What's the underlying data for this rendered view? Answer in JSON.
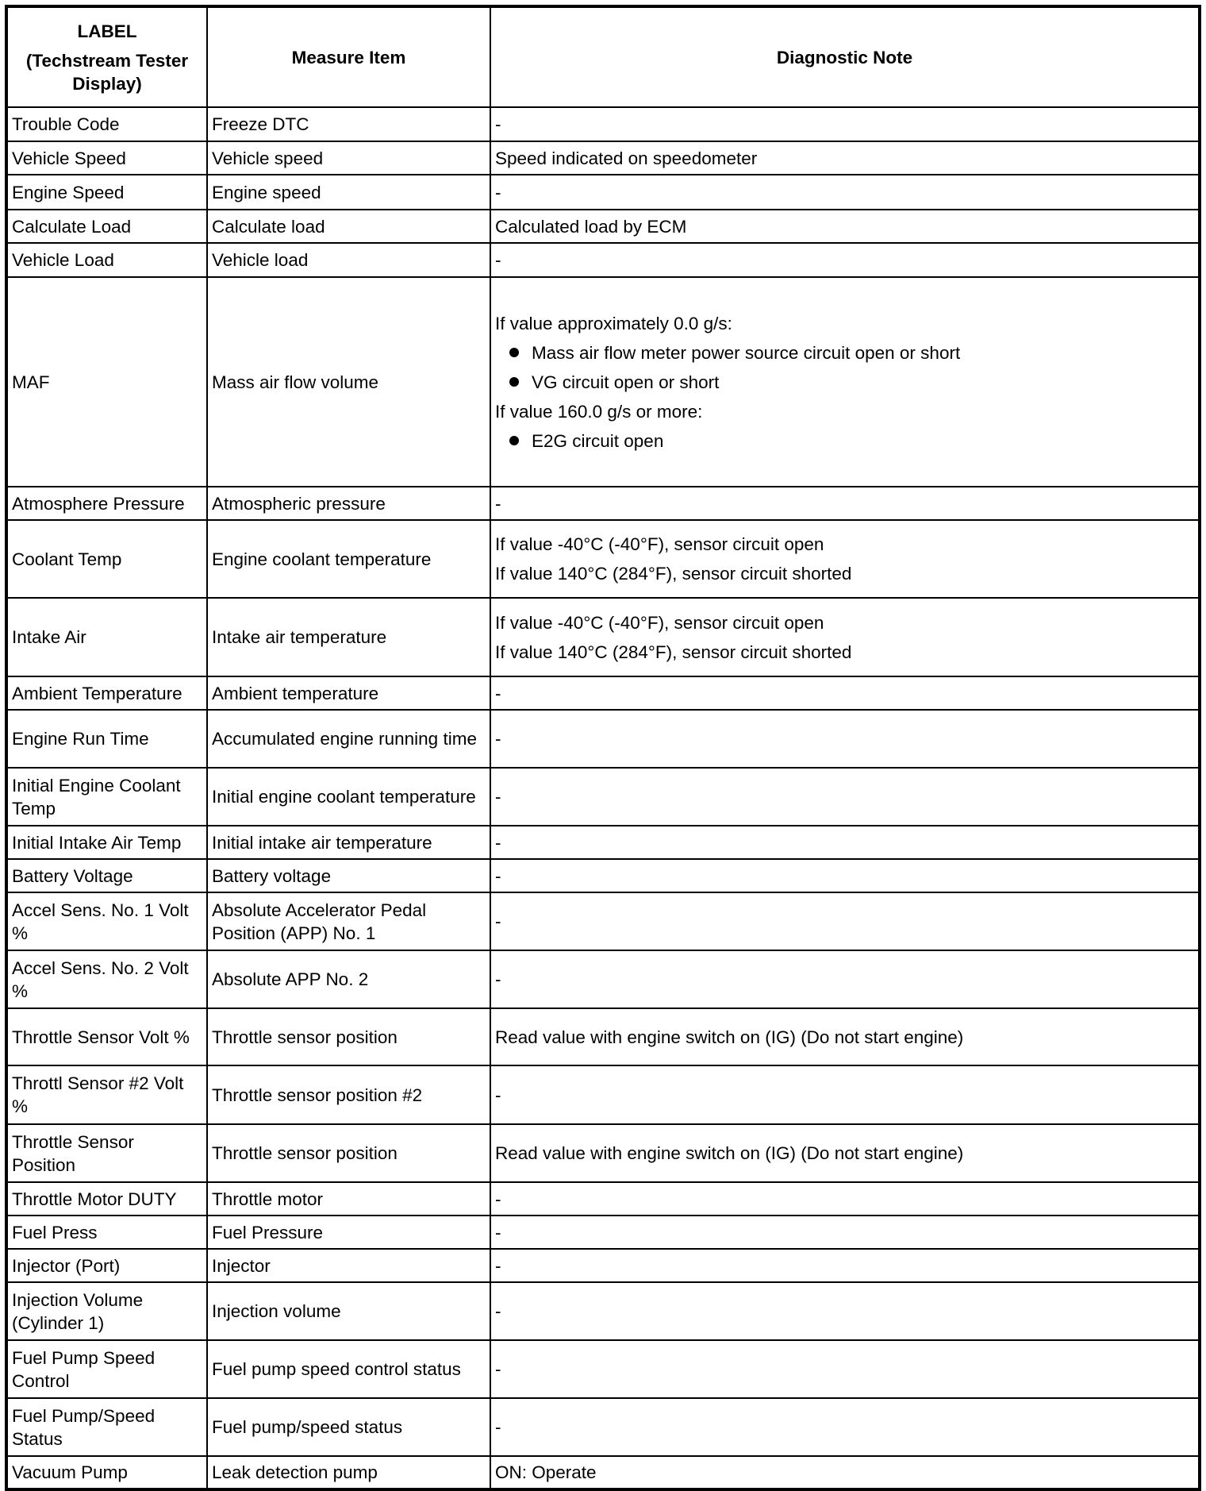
{
  "header": {
    "label_line1": "LABEL",
    "label_line2": "(Techstream Tester Display)",
    "measure_item": "Measure Item",
    "diagnostic_note": "Diagnostic Note"
  },
  "rows": [
    {
      "label": "Trouble Code",
      "item": "Freeze DTC",
      "note": [
        {
          "text": "-"
        }
      ]
    },
    {
      "label": "Vehicle Speed",
      "item": "Vehicle speed",
      "note": [
        {
          "text": "Speed indicated on speedometer"
        }
      ]
    },
    {
      "label": "Engine Speed",
      "item": "Engine speed",
      "note": [
        {
          "text": "-"
        }
      ]
    },
    {
      "label": "Calculate Load",
      "item": "Calculate load",
      "note": [
        {
          "text": "Calculated load by ECM"
        }
      ]
    },
    {
      "label": "Vehicle Load",
      "item": "Vehicle load",
      "note": [
        {
          "text": "-"
        }
      ]
    },
    {
      "label": "MAF",
      "item": "Mass air flow volume",
      "note": [
        {
          "text": "If value approximately 0.0 g/s:"
        },
        {
          "text": "Mass air flow meter power source circuit open or short",
          "bullet": true
        },
        {
          "text": "VG circuit open or short",
          "bullet": true
        },
        {
          "text": "If value 160.0 g/s or more:"
        },
        {
          "text": "E2G circuit open",
          "bullet": true
        }
      ]
    },
    {
      "label": "Atmosphere Pressure",
      "item": "Atmospheric pressure",
      "note": [
        {
          "text": "-"
        }
      ]
    },
    {
      "label": "Coolant Temp",
      "item": "Engine coolant temperature",
      "note": [
        {
          "text": "If value -40°C (-40°F), sensor circuit open"
        },
        {
          "text": "If value 140°C (284°F), sensor circuit shorted"
        }
      ]
    },
    {
      "label": "Intake Air",
      "item": "Intake air temperature",
      "note": [
        {
          "text": "If value -40°C (-40°F), sensor circuit open"
        },
        {
          "text": "If value 140°C (284°F), sensor circuit shorted"
        }
      ]
    },
    {
      "label": "Ambient Temperature",
      "item": "Ambient temperature",
      "note": [
        {
          "text": "-"
        }
      ]
    },
    {
      "label": "Engine Run Time",
      "item": "Accumulated engine running time",
      "note": [
        {
          "text": "-"
        }
      ]
    },
    {
      "label": "Initial Engine Coolant Temp",
      "item": "Initial engine coolant temperature",
      "note": [
        {
          "text": "-"
        }
      ]
    },
    {
      "label": "Initial Intake Air Temp",
      "item": "Initial intake air temperature",
      "note": [
        {
          "text": "-"
        }
      ]
    },
    {
      "label": "Battery Voltage",
      "item": "Battery voltage",
      "note": [
        {
          "text": "-"
        }
      ]
    },
    {
      "label": "Accel Sens. No. 1 Volt %",
      "item": "Absolute Accelerator Pedal Position (APP) No. 1",
      "note": [
        {
          "text": "-"
        }
      ]
    },
    {
      "label": "Accel Sens. No. 2 Volt %",
      "item": "Absolute APP No. 2",
      "note": [
        {
          "text": "-"
        }
      ]
    },
    {
      "label": "Throttle Sensor Volt %",
      "item": "Throttle sensor position",
      "note": [
        {
          "text": "Read value with engine switch on (IG) (Do not start engine)"
        }
      ]
    },
    {
      "label": "Throttl Sensor #2 Volt %",
      "item": "Throttle sensor position #2",
      "note": [
        {
          "text": "-"
        }
      ]
    },
    {
      "label": "Throttle Sensor Position",
      "item": "Throttle sensor position",
      "note": [
        {
          "text": "Read value with engine switch on (IG) (Do not start engine)"
        }
      ]
    },
    {
      "label": "Throttle Motor DUTY",
      "item": "Throttle motor",
      "note": [
        {
          "text": "-"
        }
      ]
    },
    {
      "label": "Fuel Press",
      "item": "Fuel Pressure",
      "note": [
        {
          "text": "-"
        }
      ]
    },
    {
      "label": "Injector (Port)",
      "item": "Injector",
      "note": [
        {
          "text": "-"
        }
      ]
    },
    {
      "label": "Injection Volume (Cylinder 1)",
      "item": "Injection volume",
      "note": [
        {
          "text": "-"
        }
      ]
    },
    {
      "label": "Fuel Pump Speed Control",
      "item": "Fuel pump speed control status",
      "note": [
        {
          "text": "-"
        }
      ]
    },
    {
      "label": "Fuel Pump/Speed Status",
      "item": "Fuel pump/speed status",
      "note": [
        {
          "text": "-"
        }
      ]
    },
    {
      "label": "Vacuum Pump",
      "item": "Leak detection pump",
      "note": [
        {
          "text": "ON: Operate"
        }
      ]
    }
  ]
}
